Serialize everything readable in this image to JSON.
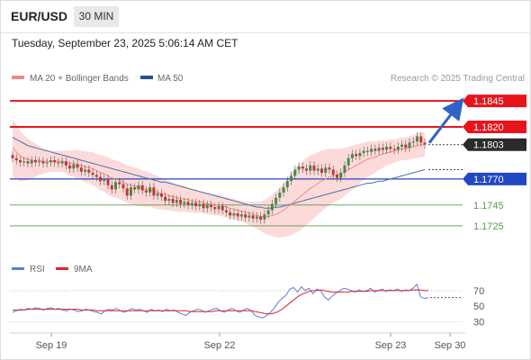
{
  "header": {
    "symbol": "EUR/USD",
    "timeframe": "30 MIN",
    "datetime": "Tuesday, September 23, 2025 5:06:14 AM CET"
  },
  "legend": {
    "ma20": "MA 20 + Bollinger Bands",
    "ma50": "MA 50",
    "copyright": "Research © 2025 Trading Central"
  },
  "rsi_legend": {
    "rsi": "RSI",
    "ma9": "9MA"
  },
  "colors": {
    "resistance": "#e8141c",
    "support": "#2148c4",
    "target_line": "#5a9a4a",
    "last_price_bg": "#2b2b2b",
    "ma20": "#f08a8a",
    "ma50": "#4a6fa8",
    "bollinger_fill": "#fcd4d4",
    "up_candle": "#3f8d3f",
    "down_candle": "#c83232",
    "rsi": "#5b7fd6",
    "rsi_ma": "#e0242c",
    "arrow": "#2f62c8"
  },
  "chart_data": [
    {
      "type": "candlestick",
      "title": "EUR/USD 30 MIN",
      "xlabel": "",
      "ylabel": "",
      "x_ticks": [
        "Sep 19",
        "Sep 22",
        "Sep 23",
        "Sep 30"
      ],
      "ylim": [
        1.1712,
        1.1852
      ],
      "levels": [
        {
          "value": 1.1845,
          "label": "1.1845",
          "kind": "resistance"
        },
        {
          "value": 1.182,
          "label": "1.1820",
          "kind": "resistance"
        },
        {
          "value": 1.1803,
          "label": "1.1803",
          "kind": "last"
        },
        {
          "value": 1.177,
          "label": "1.1770",
          "kind": "support"
        },
        {
          "value": 1.1745,
          "label": "1.1745",
          "kind": "target"
        },
        {
          "value": 1.1725,
          "label": "1.1725",
          "kind": "target"
        }
      ],
      "last_price": 1.1803,
      "arrow": {
        "from": 1.1803,
        "to": 1.1845,
        "direction": "up"
      },
      "closes": [
        1.179,
        1.1788,
        1.1786,
        1.1787,
        1.1785,
        1.1788,
        1.1786,
        1.1787,
        1.1785,
        1.1786,
        1.1788,
        1.1786,
        1.1785,
        1.1787,
        1.1783,
        1.178,
        1.1784,
        1.1781,
        1.1777,
        1.1779,
        1.1776,
        1.1774,
        1.1772,
        1.1768,
        1.177,
        1.1764,
        1.176,
        1.1767,
        1.1765,
        1.1761,
        1.1754,
        1.1762,
        1.176,
        1.1764,
        1.1759,
        1.1757,
        1.1762,
        1.1754,
        1.1756,
        1.1753,
        1.1749,
        1.1751,
        1.1747,
        1.175,
        1.1746,
        1.1748,
        1.1745,
        1.1747,
        1.1744,
        1.1746,
        1.1742,
        1.1745,
        1.1743,
        1.1741,
        1.1744,
        1.174,
        1.1738,
        1.1735,
        1.1737,
        1.1734,
        1.1736,
        1.1733,
        1.1735,
        1.1732,
        1.1734,
        1.1731,
        1.1736,
        1.174,
        1.1746,
        1.1752,
        1.1757,
        1.1762,
        1.1768,
        1.1773,
        1.1779,
        1.1782,
        1.178,
        1.1778,
        1.1783,
        1.1778,
        1.178,
        1.1776,
        1.1781,
        1.1779,
        1.1774,
        1.1771,
        1.1776,
        1.1783,
        1.179,
        1.1794,
        1.1792,
        1.1795,
        1.1797,
        1.1796,
        1.1799,
        1.1797,
        1.18,
        1.1798,
        1.1801,
        1.1799,
        1.1798,
        1.1801,
        1.1803,
        1.18,
        1.1805,
        1.1806,
        1.1811,
        1.1805,
        1.1803
      ],
      "ma20": [
        1.18,
        1.1796,
        1.1792,
        1.179,
        1.1789,
        1.1788,
        1.1788,
        1.1788,
        1.1787,
        1.1787,
        1.1787,
        1.1787,
        1.1787,
        1.1787,
        1.1786,
        1.1785,
        1.1785,
        1.1784,
        1.1783,
        1.1782,
        1.1781,
        1.178,
        1.1778,
        1.1776,
        1.1775,
        1.1773,
        1.1771,
        1.177,
        1.1769,
        1.1767,
        1.1765,
        1.1764,
        1.1763,
        1.1762,
        1.1761,
        1.176,
        1.176,
        1.1758,
        1.1757,
        1.1756,
        1.1755,
        1.1754,
        1.1753,
        1.1752,
        1.1751,
        1.1751,
        1.175,
        1.1749,
        1.1748,
        1.1748,
        1.1747,
        1.1746,
        1.1746,
        1.1745,
        1.1745,
        1.1744,
        1.1743,
        1.1742,
        1.1741,
        1.174,
        1.1739,
        1.1738,
        1.1737,
        1.1736,
        1.1735,
        1.1734,
        1.1734,
        1.1734,
        1.1735,
        1.1736,
        1.1738,
        1.174,
        1.1743,
        1.1746,
        1.1749,
        1.1752,
        1.1755,
        1.1758,
        1.1761,
        1.1763,
        1.1766,
        1.1768,
        1.177,
        1.1772,
        1.1773,
        1.1774,
        1.1775,
        1.1777,
        1.1779,
        1.1781,
        1.1783,
        1.1785,
        1.1787,
        1.1789,
        1.179,
        1.1791,
        1.1793,
        1.1794,
        1.1795,
        1.1796,
        1.1797,
        1.1798,
        1.1799,
        1.1799,
        1.18,
        1.1801,
        1.1802,
        1.1803,
        1.1803
      ],
      "ma50": [
        1.181,
        1.1808,
        1.1806,
        1.1804,
        1.1802,
        1.1801,
        1.18,
        1.1799,
        1.1798,
        1.1797,
        1.1796,
        1.1795,
        1.1794,
        1.1793,
        1.1792,
        1.1791,
        1.179,
        1.1789,
        1.1788,
        1.1787,
        1.1786,
        1.1785,
        1.1784,
        1.1783,
        1.1782,
        1.1781,
        1.178,
        1.1779,
        1.1778,
        1.1777,
        1.1776,
        1.1775,
        1.1774,
        1.1773,
        1.1772,
        1.1771,
        1.177,
        1.1769,
        1.1768,
        1.1767,
        1.1767,
        1.1766,
        1.1765,
        1.1764,
        1.1763,
        1.1762,
        1.1761,
        1.176,
        1.1759,
        1.1758,
        1.1757,
        1.1756,
        1.1755,
        1.1754,
        1.1753,
        1.1752,
        1.1751,
        1.175,
        1.1749,
        1.1748,
        1.1747,
        1.1746,
        1.1745,
        1.1744,
        1.1743,
        1.1743,
        1.1742,
        1.1742,
        1.1742,
        1.1743,
        1.1743,
        1.1744,
        1.1745,
        1.1746,
        1.1747,
        1.1748,
        1.1749,
        1.175,
        1.1751,
        1.1752,
        1.1753,
        1.1754,
        1.1755,
        1.1756,
        1.1757,
        1.1758,
        1.1759,
        1.176,
        1.1761,
        1.1762,
        1.1763,
        1.1764,
        1.1765,
        1.1766,
        1.1766,
        1.1767,
        1.1768,
        1.1768,
        1.1769,
        1.177,
        1.1771,
        1.1772,
        1.1773,
        1.1774,
        1.1775,
        1.1776,
        1.1777,
        1.1778,
        1.1779
      ],
      "bollinger_width": [
        0.0028,
        0.0026,
        0.0024,
        0.0022,
        0.002,
        0.0018,
        0.0016,
        0.0014,
        0.0012,
        0.0011,
        0.001,
        0.001,
        0.001,
        0.001,
        0.0011,
        0.0012,
        0.0013,
        0.0014,
        0.0014,
        0.0015,
        0.0015,
        0.0016,
        0.0016,
        0.0017,
        0.0017,
        0.0018,
        0.0018,
        0.0018,
        0.0018,
        0.0018,
        0.0018,
        0.0018,
        0.0018,
        0.0018,
        0.0017,
        0.0017,
        0.0016,
        0.0016,
        0.0016,
        0.0015,
        0.0015,
        0.0014,
        0.0014,
        0.0013,
        0.0013,
        0.0012,
        0.0012,
        0.0011,
        0.0011,
        0.001,
        0.001,
        0.001,
        0.001,
        0.001,
        0.001,
        0.001,
        0.001,
        0.001,
        0.001,
        0.001,
        0.001,
        0.001,
        0.0011,
        0.0012,
        0.0013,
        0.0014,
        0.0016,
        0.0018,
        0.002,
        0.0022,
        0.0024,
        0.0026,
        0.0028,
        0.003,
        0.0031,
        0.0032,
        0.0032,
        0.0032,
        0.0032,
        0.0031,
        0.003,
        0.0029,
        0.0028,
        0.0027,
        0.0026,
        0.0025,
        0.0024,
        0.0023,
        0.0022,
        0.0021,
        0.002,
        0.0019,
        0.0018,
        0.0017,
        0.0016,
        0.0015,
        0.0014,
        0.0013,
        0.0012,
        0.0012,
        0.0011,
        0.0011,
        0.0011,
        0.0011,
        0.0011,
        0.0011,
        0.0012,
        0.0012,
        0.0012
      ]
    },
    {
      "type": "line",
      "title": "RSI",
      "y_ticks": [
        "70",
        "50",
        "30"
      ],
      "ylim": [
        20,
        85
      ],
      "series": [
        {
          "name": "RSI",
          "values": [
            42,
            44,
            46,
            45,
            47,
            46,
            48,
            47,
            45,
            47,
            48,
            46,
            47,
            45,
            44,
            46,
            45,
            43,
            44,
            46,
            45,
            43,
            42,
            40,
            44,
            46,
            45,
            47,
            44,
            42,
            44,
            47,
            45,
            46,
            44,
            42,
            46,
            44,
            45,
            43,
            46,
            44,
            45,
            42,
            40,
            38,
            42,
            44,
            46,
            45,
            42,
            44,
            46,
            47,
            44,
            42,
            45,
            47,
            44,
            42,
            45,
            47,
            44,
            38,
            36,
            35,
            38,
            42,
            48,
            55,
            60,
            64,
            72,
            74,
            68,
            75,
            70,
            73,
            66,
            72,
            70,
            62,
            58,
            63,
            67,
            70,
            73,
            72,
            70,
            68,
            71,
            69,
            70,
            73,
            68,
            70,
            72,
            69,
            71,
            70,
            72,
            69,
            71,
            70,
            73,
            78,
            62,
            60,
            61
          ]
        },
        {
          "name": "9MA",
          "values": [
            45,
            45,
            45,
            45,
            46,
            46,
            46,
            46,
            46,
            46,
            46,
            46,
            46,
            46,
            46,
            46,
            46,
            46,
            45,
            45,
            45,
            45,
            44,
            44,
            44,
            44,
            44,
            44,
            44,
            44,
            44,
            44,
            44,
            44,
            44,
            44,
            44,
            44,
            44,
            44,
            44,
            44,
            44,
            44,
            44,
            44,
            43,
            43,
            43,
            43,
            43,
            43,
            43,
            44,
            44,
            44,
            44,
            44,
            44,
            44,
            44,
            44,
            44,
            43,
            42,
            41,
            40,
            40,
            41,
            43,
            46,
            50,
            54,
            58,
            62,
            65,
            67,
            69,
            70,
            70,
            71,
            70,
            69,
            68,
            68,
            68,
            68,
            68,
            69,
            69,
            69,
            69,
            69,
            70,
            70,
            70,
            70,
            70,
            70,
            70,
            70,
            70,
            70,
            70,
            71,
            71,
            71,
            70,
            70
          ]
        }
      ]
    }
  ]
}
